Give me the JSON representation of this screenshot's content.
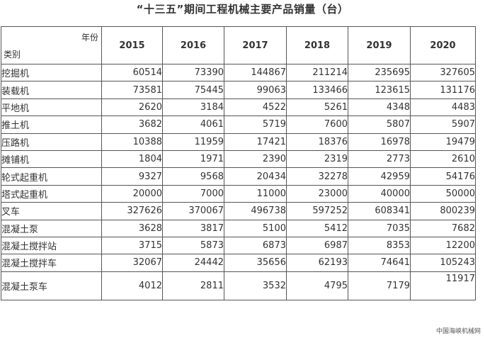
{
  "title": "“十三五”期间工程机械主要产品销量（台）",
  "header": {
    "year_label": "年份",
    "category_label": "类别",
    "years": [
      "2015",
      "2016",
      "2017",
      "2018",
      "2019",
      "2020"
    ]
  },
  "rows": [
    {
      "category": "挖掘机",
      "values": [
        "60514",
        "73390",
        "144867",
        "211214",
        "235695",
        "327605"
      ]
    },
    {
      "category": "装载机",
      "values": [
        "73581",
        "75445",
        "99063",
        "133466",
        "123615",
        "131176"
      ]
    },
    {
      "category": "平地机",
      "values": [
        "2620",
        "3184",
        "4522",
        "5261",
        "4348",
        "4483"
      ]
    },
    {
      "category": "推土机",
      "values": [
        "3682",
        "4061",
        "5719",
        "7600",
        "5807",
        "5907"
      ]
    },
    {
      "category": "压路机",
      "values": [
        "10388",
        "11959",
        "17421",
        "18376",
        "16978",
        "19479"
      ]
    },
    {
      "category": "摊铺机",
      "values": [
        "1804",
        "1971",
        "2390",
        "2319",
        "2773",
        "2610"
      ]
    },
    {
      "category": "轮式起重机",
      "values": [
        "9327",
        "9568",
        "20434",
        "32278",
        "42959",
        "54176"
      ]
    },
    {
      "category": "塔式起重机",
      "values": [
        "20000",
        "7000",
        "11000",
        "23000",
        "40000",
        "50000"
      ]
    },
    {
      "category": "叉车",
      "values": [
        "327626",
        "370067",
        "496738",
        "597252",
        "608341",
        "800239"
      ]
    },
    {
      "category": "混凝土泵",
      "values": [
        "3628",
        "3817",
        "5100",
        "5412",
        "7035",
        "7682"
      ]
    },
    {
      "category": "混凝土搅拌站",
      "values": [
        "3715",
        "5873",
        "6873",
        "6987",
        "8353",
        "12200"
      ]
    },
    {
      "category": "混凝土搅拌车",
      "values": [
        "32067",
        "24442",
        "35656",
        "62193",
        "74641",
        "105243"
      ]
    },
    {
      "category": "混凝土泵车",
      "values": [
        "4012",
        "2811",
        "3532",
        "4795",
        "7179",
        "11917"
      ]
    }
  ],
  "watermark": "中国海峡机械网"
}
